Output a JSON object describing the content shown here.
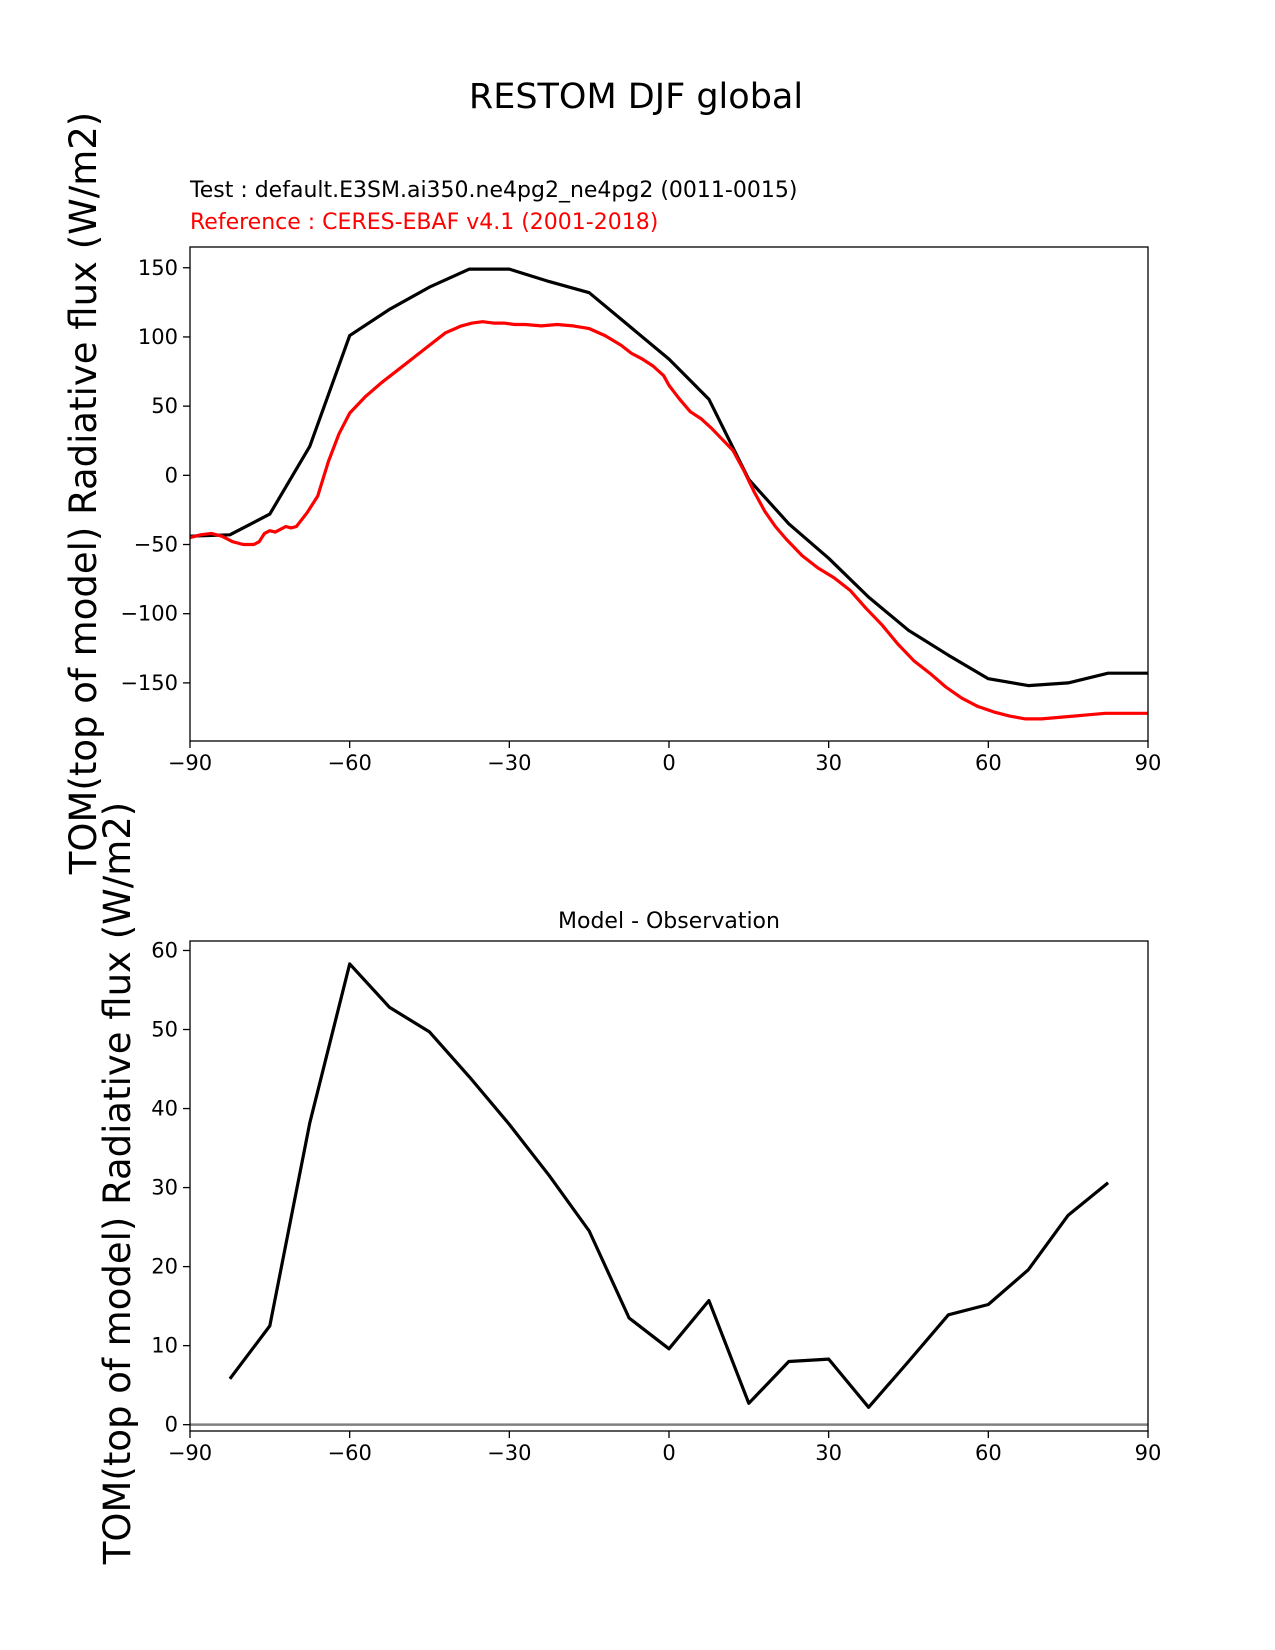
{
  "figure": {
    "suptitle": "RESTOM DJF global",
    "test_label": "Test : default.E3SM.ai350.ne4pg2_ne4pg2 (0011-0015)",
    "reference_label": "Reference : CERES-EBAF v4.1 (2001-2018)",
    "colors": {
      "test": "#000000",
      "reference": "#ff0000",
      "zero_line": "#808080"
    }
  },
  "chart_data": [
    {
      "type": "line",
      "title": "",
      "ylabel": "TOM(top of model) Radiative flux (W/m2)",
      "xlabel": "",
      "xlim": [
        -90,
        90
      ],
      "ylim": [
        -192,
        165
      ],
      "xticks": [
        -90,
        -60,
        -30,
        0,
        30,
        60,
        90
      ],
      "xtick_labels": [
        "−90",
        "−60",
        "−30",
        "0",
        "30",
        "60",
        "90"
      ],
      "yticks": [
        150,
        100,
        50,
        0,
        -50,
        -100,
        -150
      ],
      "ytick_labels": [
        "150",
        "100",
        "50",
        "0",
        "−50",
        "−100",
        "−150"
      ],
      "grid": false,
      "series": [
        {
          "role": "test",
          "color": "#000000",
          "x": [
            -90,
            -82.5,
            -75,
            -67.5,
            -60,
            -52.5,
            -45,
            -37.5,
            -30,
            -22.5,
            -15,
            -7.5,
            0,
            7.5,
            15,
            22.5,
            30,
            37.5,
            45,
            52.5,
            60,
            67.5,
            75,
            82.5,
            90
          ],
          "y": [
            -44,
            -43,
            -28,
            21,
            101,
            120,
            136,
            149,
            149,
            140,
            132,
            108,
            84,
            55,
            -3,
            -35,
            -60,
            -88,
            -112,
            -130,
            -147,
            -152,
            -150,
            -143,
            -143
          ]
        },
        {
          "role": "reference",
          "color": "#ff0000",
          "x": [
            -90,
            -88,
            -86,
            -84,
            -82,
            -80,
            -78,
            -77,
            -76,
            -75,
            -74,
            -73,
            -72,
            -71,
            -70,
            -68,
            -66,
            -64,
            -62,
            -60,
            -57,
            -54,
            -51,
            -48,
            -45,
            -42,
            -39,
            -37,
            -35,
            -33,
            -31,
            -29,
            -27,
            -24,
            -21,
            -18,
            -15,
            -12,
            -9,
            -7,
            -5,
            -3,
            -1,
            0,
            2,
            4,
            6,
            8,
            10,
            12,
            14,
            16,
            18,
            20,
            22,
            25,
            28,
            31,
            34,
            37,
            40,
            43,
            46,
            49,
            52,
            55,
            58,
            61,
            64,
            67,
            70,
            73,
            76,
            79,
            82,
            85,
            88,
            90
          ],
          "y": [
            -45,
            -43,
            -42,
            -44,
            -48,
            -50,
            -50,
            -48,
            -42,
            -40,
            -41,
            -39,
            -37,
            -38,
            -37,
            -27,
            -15,
            10,
            30,
            45,
            57,
            67,
            76,
            85,
            94,
            103,
            108,
            110,
            111,
            110,
            110,
            109,
            109,
            108,
            109,
            108,
            106,
            101,
            94,
            88,
            84,
            79,
            72,
            65,
            55,
            46,
            41,
            34,
            26,
            18,
            4,
            -12,
            -26,
            -37,
            -46,
            -58,
            -67,
            -74,
            -83,
            -96,
            -108,
            -122,
            -134,
            -143,
            -153,
            -161,
            -167,
            -171,
            -174,
            -176,
            -176,
            -175,
            -174,
            -173,
            -172,
            -172,
            -172,
            -172
          ]
        }
      ]
    },
    {
      "type": "line",
      "title": "Model - Observation",
      "ylabel": "TOM(top of model) Radiative flux (W/m2)",
      "xlabel": "",
      "xlim": [
        -90,
        90
      ],
      "ylim": [
        -0.8,
        61.2
      ],
      "xticks": [
        -90,
        -60,
        -30,
        0,
        30,
        60,
        90
      ],
      "xtick_labels": [
        "−90",
        "−60",
        "−30",
        "0",
        "30",
        "60",
        "90"
      ],
      "yticks": [
        60,
        50,
        40,
        30,
        20,
        10,
        0
      ],
      "ytick_labels": [
        "60",
        "50",
        "40",
        "30",
        "20",
        "10",
        "0"
      ],
      "grid": false,
      "zero_line": true,
      "series": [
        {
          "role": "difference",
          "color": "#000000",
          "x": [
            -82.5,
            -75,
            -67.5,
            -60,
            -52.5,
            -45,
            -37.5,
            -30,
            -22.5,
            -15,
            -7.5,
            0,
            7.5,
            15,
            22.5,
            30,
            37.5,
            45,
            52.5,
            60,
            67.5,
            75,
            82.5
          ],
          "y": [
            5.8,
            12.5,
            38.2,
            58.3,
            52.8,
            49.7,
            44.0,
            38.0,
            31.5,
            24.5,
            13.5,
            9.6,
            15.7,
            2.7,
            8.0,
            8.3,
            2.2,
            8.0,
            13.9,
            15.2,
            19.6,
            26.5,
            30.6
          ]
        }
      ]
    }
  ]
}
